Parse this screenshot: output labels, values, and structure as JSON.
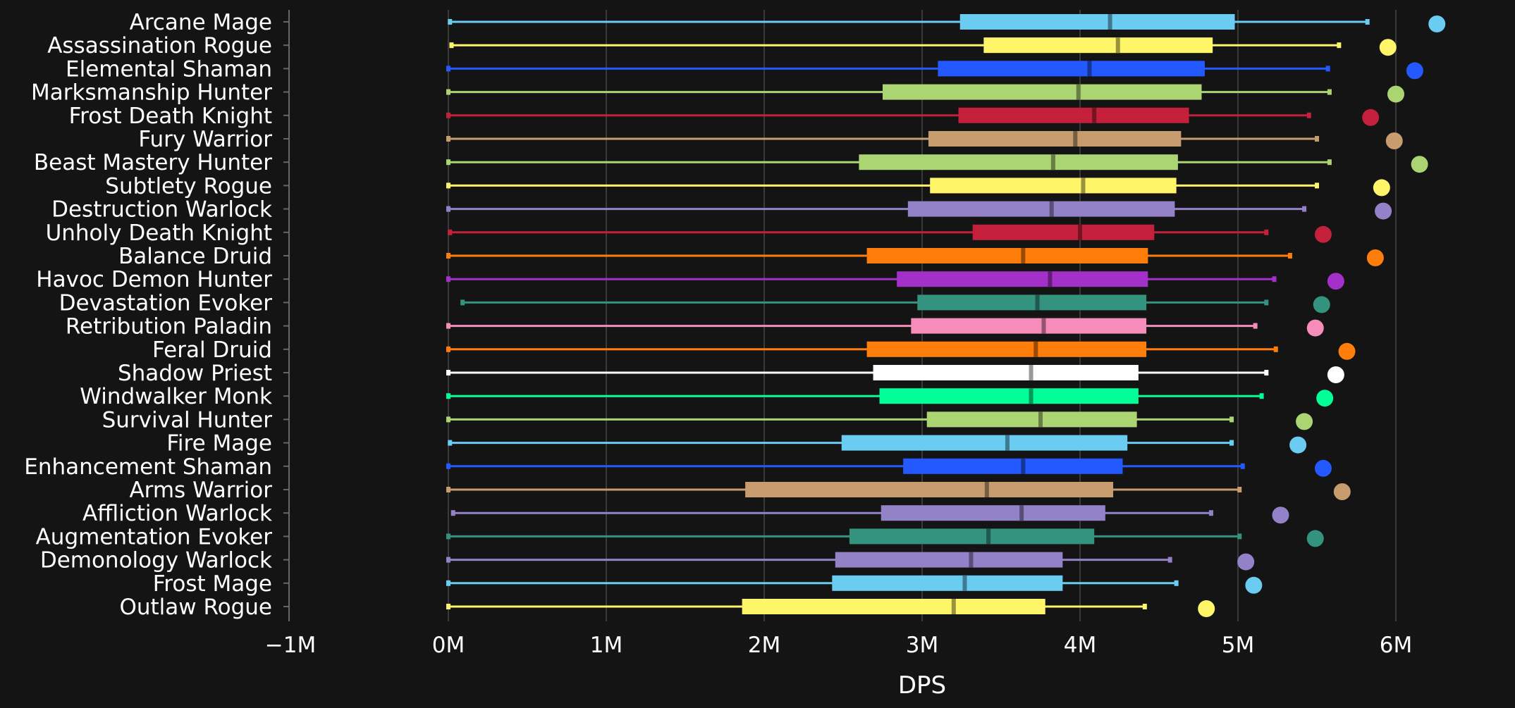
{
  "chart_data": {
    "type": "boxplot",
    "title": "",
    "xlabel": "DPS",
    "ylabel": "",
    "xlim": [
      -1000000,
      6500000
    ],
    "xticks": [
      -1000000,
      0,
      1000000,
      2000000,
      3000000,
      4000000,
      5000000,
      6000000
    ],
    "xtick_labels": [
      "−1M",
      "0M",
      "1M",
      "2M",
      "3M",
      "4M",
      "5M",
      "6M"
    ],
    "grid": true,
    "series": [
      {
        "name": "Arcane Mage",
        "color": "#69CCF0",
        "min": 10000,
        "q1": 3240000,
        "median": 4190000,
        "q3": 4980000,
        "max": 5820000,
        "top": 6260000
      },
      {
        "name": "Assassination Rogue",
        "color": "#FFF569",
        "min": 20000,
        "q1": 3390000,
        "median": 4240000,
        "q3": 4840000,
        "max": 5640000,
        "top": 5950000
      },
      {
        "name": "Elemental Shaman",
        "color": "#2459FF",
        "min": 0,
        "q1": 3100000,
        "median": 4060000,
        "q3": 4790000,
        "max": 5570000,
        "top": 6120000
      },
      {
        "name": "Marksmanship Hunter",
        "color": "#ABD473",
        "min": 0,
        "q1": 2750000,
        "median": 3990000,
        "q3": 4770000,
        "max": 5580000,
        "top": 6000000
      },
      {
        "name": "Frost Death Knight",
        "color": "#C41F3B",
        "min": 0,
        "q1": 3230000,
        "median": 4090000,
        "q3": 4690000,
        "max": 5450000,
        "top": 5840000
      },
      {
        "name": "Fury Warrior",
        "color": "#C79C6E",
        "min": 0,
        "q1": 3040000,
        "median": 3970000,
        "q3": 4640000,
        "max": 5500000,
        "top": 5990000
      },
      {
        "name": "Beast Mastery Hunter",
        "color": "#ABD473",
        "min": 0,
        "q1": 2600000,
        "median": 3830000,
        "q3": 4620000,
        "max": 5580000,
        "top": 6150000
      },
      {
        "name": "Subtlety Rogue",
        "color": "#FFF569",
        "min": 0,
        "q1": 3050000,
        "median": 4020000,
        "q3": 4610000,
        "max": 5500000,
        "top": 5910000
      },
      {
        "name": "Destruction Warlock",
        "color": "#9482C9",
        "min": 0,
        "q1": 2910000,
        "median": 3820000,
        "q3": 4600000,
        "max": 5420000,
        "top": 5920000
      },
      {
        "name": "Unholy Death Knight",
        "color": "#C41F3B",
        "min": 10000,
        "q1": 3320000,
        "median": 4000000,
        "q3": 4470000,
        "max": 5180000,
        "top": 5540000
      },
      {
        "name": "Balance Druid",
        "color": "#FF7D0A",
        "min": 0,
        "q1": 2650000,
        "median": 3640000,
        "q3": 4430000,
        "max": 5330000,
        "top": 5870000
      },
      {
        "name": "Havoc Demon Hunter",
        "color": "#A330C9",
        "min": 0,
        "q1": 2840000,
        "median": 3810000,
        "q3": 4430000,
        "max": 5230000,
        "top": 5620000
      },
      {
        "name": "Devastation Evoker",
        "color": "#33937F",
        "min": 90000,
        "q1": 2970000,
        "median": 3730000,
        "q3": 4420000,
        "max": 5180000,
        "top": 5530000
      },
      {
        "name": "Retribution Paladin",
        "color": "#F58CBA",
        "min": 0,
        "q1": 2930000,
        "median": 3770000,
        "q3": 4420000,
        "max": 5110000,
        "top": 5490000
      },
      {
        "name": "Feral Druid",
        "color": "#FF7D0A",
        "min": 0,
        "q1": 2650000,
        "median": 3720000,
        "q3": 4420000,
        "max": 5240000,
        "top": 5690000
      },
      {
        "name": "Shadow Priest",
        "color": "#FFFFFF",
        "min": 0,
        "q1": 2690000,
        "median": 3690000,
        "q3": 4370000,
        "max": 5180000,
        "top": 5620000
      },
      {
        "name": "Windwalker Monk",
        "color": "#00FF96",
        "min": 0,
        "q1": 2730000,
        "median": 3690000,
        "q3": 4370000,
        "max": 5150000,
        "top": 5550000
      },
      {
        "name": "Survival Hunter",
        "color": "#ABD473",
        "min": 0,
        "q1": 3030000,
        "median": 3750000,
        "q3": 4360000,
        "max": 4960000,
        "top": 5420000
      },
      {
        "name": "Fire Mage",
        "color": "#69CCF0",
        "min": 10000,
        "q1": 2490000,
        "median": 3540000,
        "q3": 4300000,
        "max": 4960000,
        "top": 5380000
      },
      {
        "name": "Enhancement Shaman",
        "color": "#2459FF",
        "min": 0,
        "q1": 2880000,
        "median": 3640000,
        "q3": 4270000,
        "max": 5030000,
        "top": 5540000
      },
      {
        "name": "Arms Warrior",
        "color": "#C79C6E",
        "min": 0,
        "q1": 1880000,
        "median": 3410000,
        "q3": 4210000,
        "max": 5010000,
        "top": 5660000
      },
      {
        "name": "Affliction Warlock",
        "color": "#9482C9",
        "min": 30000,
        "q1": 2740000,
        "median": 3630000,
        "q3": 4160000,
        "max": 4830000,
        "top": 5270000
      },
      {
        "name": "Augmentation Evoker",
        "color": "#33937F",
        "min": 0,
        "q1": 2540000,
        "median": 3420000,
        "q3": 4090000,
        "max": 5010000,
        "top": 5490000
      },
      {
        "name": "Demonology Warlock",
        "color": "#9482C9",
        "min": 0,
        "q1": 2450000,
        "median": 3310000,
        "q3": 3890000,
        "max": 4570000,
        "top": 5050000
      },
      {
        "name": "Frost Mage",
        "color": "#69CCF0",
        "min": 0,
        "q1": 2430000,
        "median": 3270000,
        "q3": 3890000,
        "max": 4610000,
        "top": 5100000
      },
      {
        "name": "Outlaw Rogue",
        "color": "#FFF569",
        "min": 0,
        "q1": 1860000,
        "median": 3200000,
        "q3": 3780000,
        "max": 4410000,
        "top": 4800000
      }
    ]
  }
}
